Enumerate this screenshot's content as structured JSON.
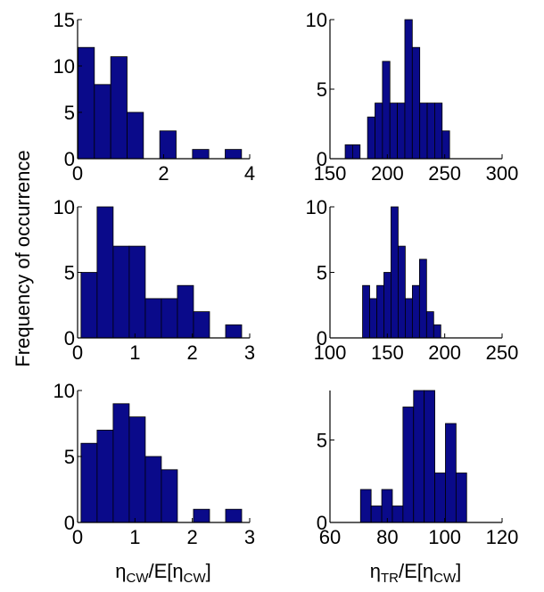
{
  "ylabel": "Frequency of occurrence",
  "xlabels": {
    "left": {
      "main": "η",
      "sub1": "CW",
      "mid": "/E[η",
      "sub2": "CW",
      "end": "]"
    },
    "right": {
      "main": "η",
      "sub1": "TR",
      "mid": "/E[η",
      "sub2": "CW",
      "end": "]"
    }
  },
  "colors": {
    "bar_fill": "#0a0a8a",
    "bar_edge": "#000000",
    "axis": "#000000",
    "background": "#ffffff"
  },
  "chart_data": [
    {
      "type": "bar",
      "panel": "top-left",
      "bin_width": 0.38,
      "x": [
        0.2,
        0.58,
        0.96,
        1.34,
        1.72,
        2.1,
        2.48,
        2.86,
        3.24,
        3.62
      ],
      "values": [
        12,
        8,
        11,
        5,
        0,
        3,
        0,
        1,
        0,
        1
      ],
      "xlim": [
        0,
        4
      ],
      "ylim": [
        0,
        15
      ],
      "xticks": [
        0,
        2,
        4
      ],
      "yticks": [
        0,
        5,
        10,
        15
      ]
    },
    {
      "type": "bar",
      "panel": "top-right",
      "bin_width": 6.5,
      "x": [
        166.5,
        173,
        179.5,
        186,
        192.5,
        199,
        205.5,
        212,
        218.5,
        225,
        231.5,
        238,
        244.5,
        251,
        257.5
      ],
      "values": [
        1,
        1,
        0,
        3,
        4,
        7,
        4,
        4,
        10,
        8,
        4,
        4,
        4,
        2,
        0
      ],
      "xlim": [
        150,
        300
      ],
      "ylim": [
        0,
        10
      ],
      "xticks": [
        150,
        200,
        250,
        300
      ],
      "yticks": [
        0,
        5,
        10
      ]
    },
    {
      "type": "bar",
      "panel": "middle-left",
      "bin_width": 0.28,
      "x": [
        0.2,
        0.48,
        0.76,
        1.04,
        1.32,
        1.6,
        1.88,
        2.16,
        2.44,
        2.72
      ],
      "values": [
        5,
        10,
        7,
        7,
        3,
        3,
        4,
        2,
        0,
        1
      ],
      "xlim": [
        0,
        3
      ],
      "ylim": [
        0,
        10
      ],
      "xticks": [
        0,
        1,
        2,
        3
      ],
      "yticks": [
        0,
        5,
        10
      ]
    },
    {
      "type": "bar",
      "panel": "middle-right",
      "bin_width": 6.2,
      "x": [
        131.5,
        137.7,
        143.9,
        150.1,
        156.3,
        162.5,
        168.7,
        174.9,
        181.1,
        187.3,
        193.5
      ],
      "values": [
        4,
        3,
        4,
        5,
        10,
        7,
        3,
        4,
        6,
        2,
        1
      ],
      "xlim": [
        100,
        250
      ],
      "ylim": [
        0,
        10
      ],
      "xticks": [
        100,
        150,
        200,
        250
      ],
      "yticks": [
        0,
        5,
        10
      ]
    },
    {
      "type": "bar",
      "panel": "bottom-left",
      "bin_width": 0.28,
      "x": [
        0.2,
        0.48,
        0.76,
        1.04,
        1.32,
        1.6,
        1.88,
        2.16,
        2.44,
        2.72
      ],
      "values": [
        6,
        7,
        9,
        8,
        5,
        4,
        0,
        1,
        0,
        1
      ],
      "xlim": [
        0,
        3
      ],
      "ylim": [
        0,
        10
      ],
      "xticks": [
        0,
        1,
        2,
        3
      ],
      "yticks": [
        0,
        5,
        10
      ]
    },
    {
      "type": "bar",
      "panel": "bottom-right",
      "bin_width": 3.7,
      "x": [
        72.5,
        76.2,
        79.9,
        83.6,
        87.3,
        91.0,
        94.7,
        98.4,
        102.1,
        105.8
      ],
      "values": [
        2,
        1,
        2,
        1,
        7,
        8,
        8,
        3,
        6,
        3
      ],
      "xlim": [
        60,
        120
      ],
      "ylim": [
        0,
        8
      ],
      "xticks": [
        60,
        80,
        100,
        120
      ],
      "yticks": [
        0,
        5
      ]
    }
  ]
}
